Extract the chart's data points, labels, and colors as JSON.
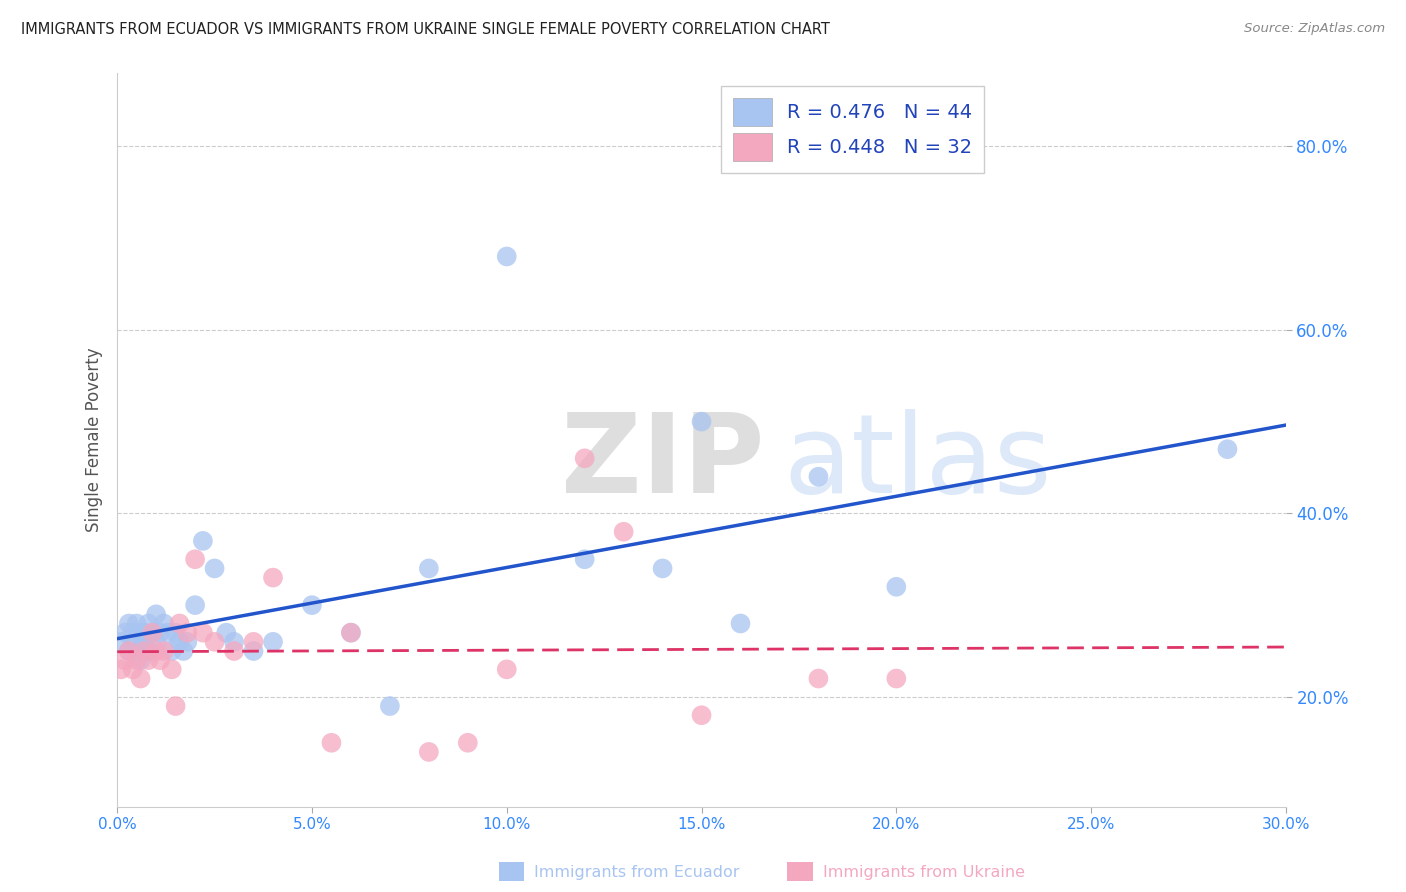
{
  "title": "IMMIGRANTS FROM ECUADOR VS IMMIGRANTS FROM UKRAINE SINGLE FEMALE POVERTY CORRELATION CHART",
  "source": "Source: ZipAtlas.com",
  "ylabel": "Single Female Poverty",
  "xlim": [
    0.0,
    0.3
  ],
  "ylim": [
    0.08,
    0.88
  ],
  "yticks": [
    0.2,
    0.4,
    0.6,
    0.8
  ],
  "xticks": [
    0.0,
    0.05,
    0.1,
    0.15,
    0.2,
    0.25,
    0.3
  ],
  "ecuador_color": "#a8c4f0",
  "ukraine_color": "#f4a8c0",
  "trendline_ecuador_color": "#2255cc",
  "trendline_ukraine_color": "#dd3366",
  "legend_ecuador_label": "R = 0.476   N = 44",
  "legend_ukraine_label": "R = 0.448   N = 32",
  "watermark_zip": "ZIP",
  "watermark_atlas": "atlas",
  "ecuador_x": [
    0.001,
    0.002,
    0.003,
    0.003,
    0.004,
    0.004,
    0.005,
    0.005,
    0.006,
    0.006,
    0.007,
    0.007,
    0.008,
    0.008,
    0.009,
    0.01,
    0.01,
    0.011,
    0.012,
    0.013,
    0.014,
    0.015,
    0.016,
    0.017,
    0.018,
    0.02,
    0.022,
    0.025,
    0.028,
    0.03,
    0.035,
    0.04,
    0.05,
    0.06,
    0.07,
    0.08,
    0.1,
    0.12,
    0.14,
    0.15,
    0.16,
    0.18,
    0.2,
    0.285
  ],
  "ecuador_y": [
    0.26,
    0.27,
    0.28,
    0.25,
    0.26,
    0.27,
    0.25,
    0.28,
    0.24,
    0.27,
    0.26,
    0.27,
    0.28,
    0.25,
    0.27,
    0.29,
    0.26,
    0.27,
    0.28,
    0.27,
    0.25,
    0.27,
    0.26,
    0.25,
    0.26,
    0.3,
    0.37,
    0.34,
    0.27,
    0.26,
    0.25,
    0.26,
    0.3,
    0.27,
    0.19,
    0.34,
    0.68,
    0.35,
    0.34,
    0.5,
    0.28,
    0.44,
    0.32,
    0.47
  ],
  "ukraine_x": [
    0.001,
    0.002,
    0.003,
    0.004,
    0.005,
    0.006,
    0.007,
    0.008,
    0.009,
    0.01,
    0.011,
    0.012,
    0.014,
    0.015,
    0.016,
    0.018,
    0.02,
    0.022,
    0.025,
    0.03,
    0.035,
    0.04,
    0.055,
    0.06,
    0.08,
    0.09,
    0.1,
    0.12,
    0.13,
    0.15,
    0.18,
    0.2
  ],
  "ukraine_y": [
    0.23,
    0.24,
    0.25,
    0.23,
    0.24,
    0.22,
    0.25,
    0.24,
    0.27,
    0.25,
    0.24,
    0.25,
    0.23,
    0.19,
    0.28,
    0.27,
    0.35,
    0.27,
    0.26,
    0.25,
    0.26,
    0.33,
    0.15,
    0.27,
    0.14,
    0.15,
    0.23,
    0.46,
    0.38,
    0.18,
    0.22,
    0.22
  ],
  "background_color": "#ffffff",
  "grid_color": "#cccccc",
  "tick_label_color": "#3388ff",
  "title_color": "#222222",
  "ylabel_color": "#555555"
}
